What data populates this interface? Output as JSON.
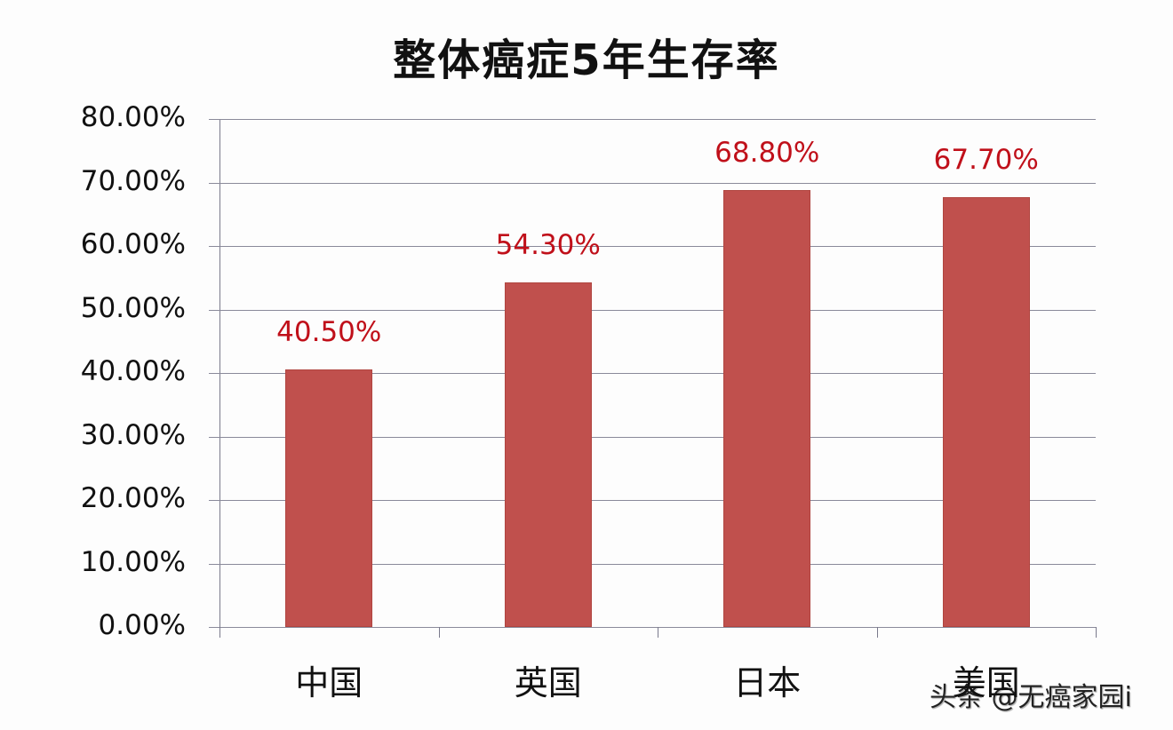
{
  "chart_data": {
    "type": "bar",
    "title": "整体癌症5年生存率",
    "xlabel": "",
    "ylabel": "",
    "categories": [
      "中国",
      "英国",
      "日本",
      "美国"
    ],
    "values": [
      40.5,
      54.3,
      68.8,
      67.7
    ],
    "value_labels": [
      "40.50%",
      "54.30%",
      "68.80%",
      "67.70%"
    ],
    "yticks": [
      "0.00%",
      "10.00%",
      "20.00%",
      "30.00%",
      "40.00%",
      "50.00%",
      "60.00%",
      "70.00%",
      "80.00%"
    ],
    "ylim": [
      0,
      80
    ],
    "grid": true,
    "legend": null,
    "bar_color": "#c0504d",
    "label_color": "#c0101a"
  },
  "watermark": "头条 @无癌家园i"
}
